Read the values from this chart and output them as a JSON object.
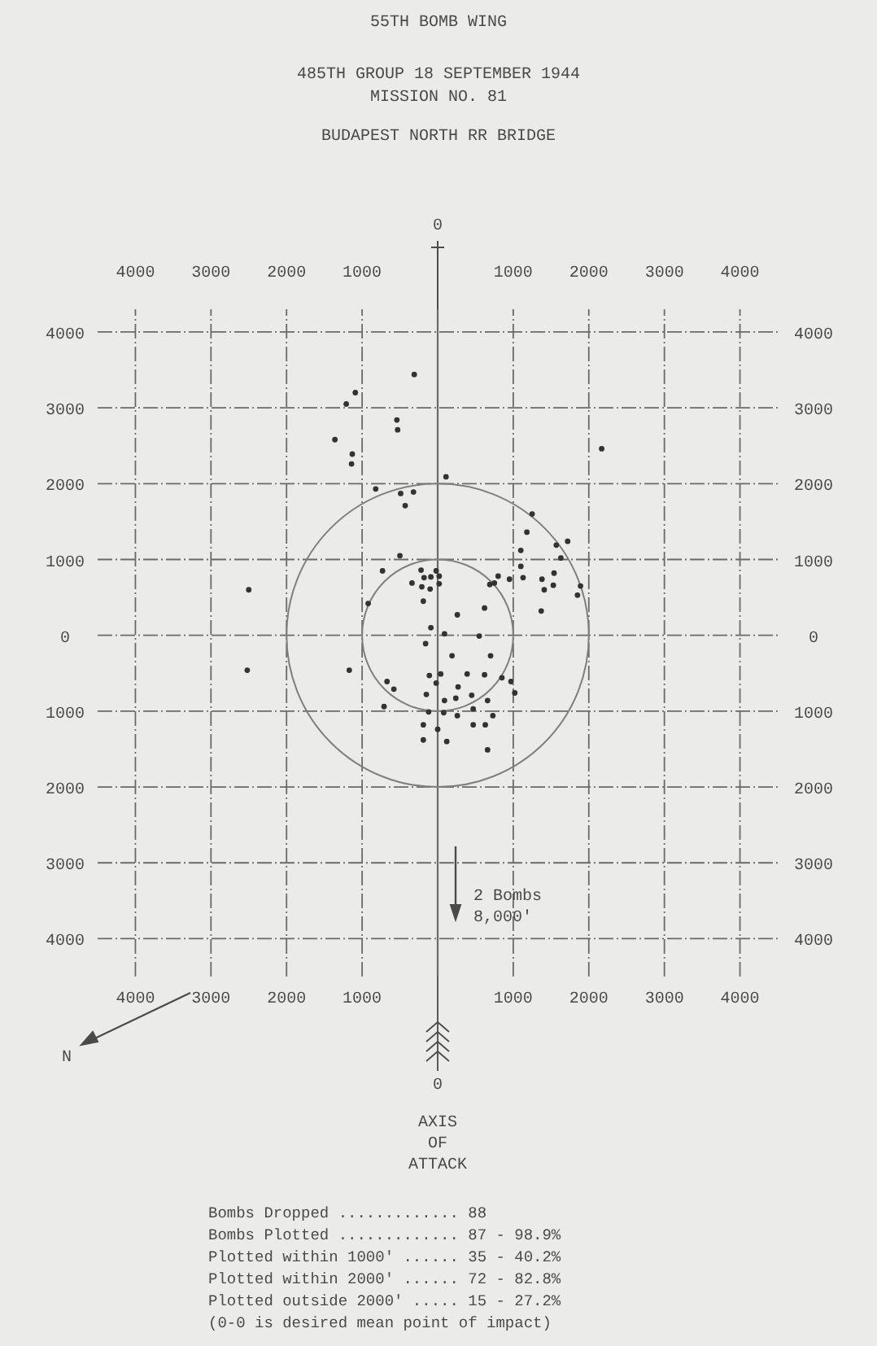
{
  "chart_data": {
    "type": "scatter",
    "title": "55TH BOMB WING",
    "subtitle": "485TH GROUP 18 SEPTEMBER 1944\nMISSION NO. 81",
    "annotations": [
      "BUDAPEST NORTH RR BRIDGE",
      "N",
      "2 Bombs\n8,000'",
      "AXIS OF ATTACK",
      "Bombs Dropped ............. 88",
      "Bombs Plotted ............. 87 - 98.9%",
      "Plotted within 1000' ...... 35 - 40.2%",
      "Plotted within 2000' ...... 72 - 82.8%",
      "Plotted outside 2000' ..... 15 - 27.2%",
      "(0-0 is desired mean point of impact)",
      "0",
      "0"
    ],
    "xlim": [
      -4500,
      4500
    ],
    "ylim": [
      -4500,
      4300
    ],
    "x2lim": [
      -4500,
      4500
    ],
    "y2lim": [
      -4500,
      4300
    ],
    "xticks": [
      {
        "value": -4000,
        "label": "4000"
      },
      {
        "value": -3000,
        "label": "3000"
      },
      {
        "value": -2000,
        "label": "2000"
      },
      {
        "value": -1000,
        "label": "1000"
      },
      {
        "value": 0,
        "label": null
      },
      1000,
      2000,
      3000,
      4000
    ],
    "x2ticks": [
      {
        "value": -4000,
        "label": "4000"
      },
      {
        "value": -3000,
        "label": "3000"
      },
      {
        "value": -2000,
        "label": "2000"
      },
      {
        "value": -1000,
        "label": "1000"
      },
      {
        "value": 0,
        "label": null
      },
      1000,
      2000,
      3000,
      4000
    ],
    "yticks": [
      {
        "value": -4000,
        "label": "4000"
      },
      {
        "value": -3000,
        "label": "3000"
      },
      {
        "value": -2000,
        "label": "2000"
      },
      {
        "value": -1000,
        "label": "1000"
      },
      0,
      1000,
      2000,
      3000,
      4000
    ],
    "y2ticks": [
      {
        "value": -4000,
        "label": "4000"
      },
      {
        "value": -3000,
        "label": "3000"
      },
      {
        "value": -2000,
        "label": "2000"
      },
      {
        "value": -1000,
        "label": "1000"
      },
      0,
      1000,
      2000,
      3000,
      4000
    ],
    "grid": true,
    "series": [
      {
        "color": "#333333",
        "marker": "circle",
        "x": [
          -310,
          -1090,
          -1210,
          -540,
          -530,
          -1360,
          -1130,
          -1140,
          2170,
          110,
          -820,
          -490,
          -320,
          -430,
          1250,
          1180,
          1720,
          1570,
          1630,
          1100,
          1100,
          1130,
          950,
          800,
          750,
          690,
          1380,
          1410,
          1530,
          1540,
          1890,
          1850,
          1370,
          -500,
          -730,
          -220,
          -180,
          -90,
          -20,
          20,
          20,
          -340,
          -210,
          -100,
          -190,
          -920,
          620,
          260,
          -90,
          90,
          550,
          -160,
          190,
          700,
          -1170,
          -110,
          40,
          390,
          620,
          850,
          -670,
          -20,
          970,
          -580,
          270,
          1020,
          -150,
          240,
          450,
          90,
          660,
          -710,
          470,
          -120,
          80,
          260,
          730,
          -190,
          0,
          470,
          630,
          -190,
          120,
          660,
          -2500,
          -2520
        ],
        "values": [
          3440,
          3200,
          3050,
          2840,
          2710,
          2580,
          2390,
          2260,
          2460,
          2090,
          1930,
          1870,
          1890,
          1710,
          1600,
          1360,
          1240,
          1190,
          1020,
          1120,
          910,
          760,
          740,
          780,
          690,
          670,
          740,
          600,
          660,
          820,
          650,
          530,
          320,
          1050,
          850,
          860,
          760,
          770,
          850,
          780,
          680,
          690,
          640,
          610,
          450,
          420,
          360,
          270,
          100,
          20,
          -10,
          -110,
          -270,
          -270,
          -460,
          -530,
          -510,
          -510,
          -520,
          -560,
          -610,
          -630,
          -610,
          -710,
          -680,
          -760,
          -780,
          -830,
          -790,
          -860,
          -860,
          -940,
          -970,
          -1010,
          -1020,
          -1060,
          -1060,
          -1180,
          -1240,
          -1180,
          -1180,
          -1380,
          -1400,
          -1510,
          600,
          -460
        ]
      }
    ]
  }
}
